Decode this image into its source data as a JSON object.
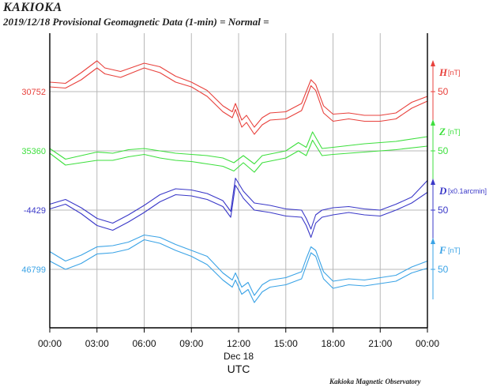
{
  "header": {
    "station": "KAKIOKA",
    "subtitle": "2019/12/18  Provisional Geomagnetic Data (1-min)  = Normal ="
  },
  "footer": {
    "credit": "Kakioka Magnetic Observatory"
  },
  "chart_data": {
    "type": "line",
    "title": "Provisional Geomagnetic Data (1-min)",
    "xlabel": "UTC",
    "date_label": "Dec 18",
    "x_ticks": [
      "00:00",
      "03:00",
      "06:00",
      "09:00",
      "12:00",
      "15:00",
      "18:00",
      "21:00",
      "00:00"
    ],
    "x_hours": [
      0,
      3,
      6,
      9,
      12,
      15,
      18,
      21,
      24
    ],
    "grid": true,
    "series": [
      {
        "name": "H",
        "unit": "[nT]",
        "scale_label": "50",
        "baseline_label": "30752",
        "color": "#e8413c",
        "scale_nt_per_div": 50,
        "upper": [
          [
            0,
            30760
          ],
          [
            1,
            30759
          ],
          [
            2,
            30768
          ],
          [
            3,
            30778
          ],
          [
            3.5,
            30772
          ],
          [
            4.5,
            30769
          ],
          [
            6,
            30776
          ],
          [
            7,
            30773
          ],
          [
            8,
            30765
          ],
          [
            9,
            30760
          ],
          [
            10,
            30753
          ],
          [
            11,
            30740
          ],
          [
            11.6,
            30735
          ],
          [
            11.8,
            30742
          ],
          [
            12.2,
            30728
          ],
          [
            12.5,
            30732
          ],
          [
            13,
            30722
          ],
          [
            13.5,
            30730
          ],
          [
            14,
            30734
          ],
          [
            15,
            30735
          ],
          [
            16,
            30742
          ],
          [
            16.3,
            30752
          ],
          [
            16.6,
            30762
          ],
          [
            16.9,
            30758
          ],
          [
            17.4,
            30740
          ],
          [
            18,
            30733
          ],
          [
            19,
            30734
          ],
          [
            20,
            30732
          ],
          [
            21,
            30732
          ],
          [
            22,
            30734
          ],
          [
            23,
            30743
          ],
          [
            24,
            30748
          ]
        ],
        "lower": [
          [
            0,
            30756
          ],
          [
            1,
            30755
          ],
          [
            2,
            30762
          ],
          [
            3,
            30772
          ],
          [
            3.5,
            30767
          ],
          [
            4.5,
            30764
          ],
          [
            6,
            30772
          ],
          [
            7,
            30768
          ],
          [
            8,
            30760
          ],
          [
            9,
            30756
          ],
          [
            10,
            30748
          ],
          [
            11,
            30735
          ],
          [
            11.6,
            30730
          ],
          [
            11.8,
            30737
          ],
          [
            12.2,
            30722
          ],
          [
            12.5,
            30726
          ],
          [
            13,
            30716
          ],
          [
            13.5,
            30724
          ],
          [
            14,
            30728
          ],
          [
            15,
            30729
          ],
          [
            16,
            30736
          ],
          [
            16.3,
            30746
          ],
          [
            16.6,
            30757
          ],
          [
            16.9,
            30753
          ],
          [
            17.4,
            30734
          ],
          [
            18,
            30727
          ],
          [
            19,
            30729
          ],
          [
            20,
            30727
          ],
          [
            21,
            30727
          ],
          [
            22,
            30729
          ],
          [
            23,
            30738
          ],
          [
            24,
            30744
          ]
        ]
      },
      {
        "name": "Z",
        "unit": "[nT]",
        "scale_label": "50",
        "baseline_label": "35360",
        "color": "#3ddf3d",
        "scale_nt_per_div": 50,
        "upper": [
          [
            0,
            35362
          ],
          [
            1,
            35353
          ],
          [
            2,
            35356
          ],
          [
            3,
            35359
          ],
          [
            4,
            35358
          ],
          [
            5,
            35361
          ],
          [
            6,
            35362
          ],
          [
            7,
            35360
          ],
          [
            8,
            35358
          ],
          [
            9,
            35357
          ],
          [
            10,
            35356
          ],
          [
            11,
            35354
          ],
          [
            11.7,
            35350
          ],
          [
            12.3,
            35356
          ],
          [
            13,
            35349
          ],
          [
            13.5,
            35356
          ],
          [
            15,
            35360
          ],
          [
            15.8,
            35367
          ],
          [
            16.3,
            35363
          ],
          [
            16.7,
            35376
          ],
          [
            17.3,
            35362
          ],
          [
            18,
            35363
          ],
          [
            20,
            35366
          ],
          [
            22,
            35368
          ],
          [
            24,
            35372
          ]
        ],
        "lower": [
          [
            0,
            35358
          ],
          [
            1,
            35348
          ],
          [
            2,
            35350
          ],
          [
            3,
            35352
          ],
          [
            4,
            35352
          ],
          [
            5,
            35355
          ],
          [
            6,
            35357
          ],
          [
            7,
            35354
          ],
          [
            8,
            35352
          ],
          [
            9,
            35351
          ],
          [
            10,
            35349
          ],
          [
            11,
            35347
          ],
          [
            11.7,
            35343
          ],
          [
            12.3,
            35350
          ],
          [
            13,
            35342
          ],
          [
            13.5,
            35350
          ],
          [
            15,
            35354
          ],
          [
            15.8,
            35360
          ],
          [
            16.3,
            35356
          ],
          [
            16.7,
            35369
          ],
          [
            17.3,
            35356
          ],
          [
            18,
            35357
          ],
          [
            20,
            35359
          ],
          [
            22,
            35361
          ],
          [
            24,
            35364
          ]
        ]
      },
      {
        "name": "D",
        "unit": "[x0.1arcmin]",
        "scale_label": "50",
        "baseline_label": "-4429",
        "color": "#3a38c8",
        "scale_nt_per_div": 50,
        "upper": [
          [
            0,
            -4424
          ],
          [
            1,
            -4420
          ],
          [
            2,
            -4427
          ],
          [
            3,
            -4436
          ],
          [
            4,
            -4440
          ],
          [
            5,
            -4433
          ],
          [
            6,
            -4425
          ],
          [
            7,
            -4416
          ],
          [
            8,
            -4411
          ],
          [
            9,
            -4412
          ],
          [
            10,
            -4415
          ],
          [
            11,
            -4421
          ],
          [
            11.5,
            -4430
          ],
          [
            11.8,
            -4402
          ],
          [
            12.3,
            -4413
          ],
          [
            13,
            -4423
          ],
          [
            14,
            -4425
          ],
          [
            15,
            -4428
          ],
          [
            16,
            -4429
          ],
          [
            16.3,
            -4436
          ],
          [
            16.6,
            -4445
          ],
          [
            16.9,
            -4433
          ],
          [
            17.3,
            -4429
          ],
          [
            18,
            -4427
          ],
          [
            19,
            -4426
          ],
          [
            20,
            -4428
          ],
          [
            21,
            -4429
          ],
          [
            22,
            -4424
          ],
          [
            23,
            -4418
          ],
          [
            24,
            -4404
          ]
        ],
        "lower": [
          [
            0,
            -4428
          ],
          [
            1,
            -4424
          ],
          [
            2,
            -4432
          ],
          [
            3,
            -4442
          ],
          [
            4,
            -4446
          ],
          [
            5,
            -4439
          ],
          [
            6,
            -4431
          ],
          [
            7,
            -4422
          ],
          [
            8,
            -4416
          ],
          [
            9,
            -4417
          ],
          [
            10,
            -4420
          ],
          [
            11,
            -4426
          ],
          [
            11.5,
            -4435
          ],
          [
            11.8,
            -4408
          ],
          [
            12.3,
            -4419
          ],
          [
            13,
            -4429
          ],
          [
            14,
            -4431
          ],
          [
            15,
            -4434
          ],
          [
            16,
            -4435
          ],
          [
            16.3,
            -4442
          ],
          [
            16.6,
            -4452
          ],
          [
            16.9,
            -4440
          ],
          [
            17.3,
            -4435
          ],
          [
            18,
            -4433
          ],
          [
            19,
            -4431
          ],
          [
            20,
            -4433
          ],
          [
            21,
            -4434
          ],
          [
            22,
            -4429
          ],
          [
            23,
            -4423
          ],
          [
            24,
            -4414
          ]
        ]
      },
      {
        "name": "F",
        "unit": "[nT]",
        "scale_label": "50",
        "baseline_label": "46799",
        "color": "#3aa3e6",
        "scale_nt_per_div": 50,
        "upper": [
          [
            0,
            46814
          ],
          [
            1,
            46806
          ],
          [
            2,
            46811
          ],
          [
            3,
            46818
          ],
          [
            4,
            46819
          ],
          [
            5,
            46822
          ],
          [
            6,
            46828
          ],
          [
            7,
            46826
          ],
          [
            8,
            46820
          ],
          [
            9,
            46815
          ],
          [
            10,
            46810
          ],
          [
            11,
            46796
          ],
          [
            11.6,
            46790
          ],
          [
            11.8,
            46796
          ],
          [
            12.2,
            46784
          ],
          [
            12.6,
            46788
          ],
          [
            13,
            46777
          ],
          [
            13.5,
            46786
          ],
          [
            14,
            46790
          ],
          [
            15,
            46792
          ],
          [
            16,
            46797
          ],
          [
            16.3,
            46808
          ],
          [
            16.6,
            46818
          ],
          [
            16.9,
            46815
          ],
          [
            17.4,
            46797
          ],
          [
            18,
            46789
          ],
          [
            19,
            46791
          ],
          [
            20,
            46790
          ],
          [
            21,
            46792
          ],
          [
            22,
            46794
          ],
          [
            23,
            46801
          ],
          [
            24,
            46806
          ]
        ],
        "lower": [
          [
            0,
            46806
          ],
          [
            1,
            46799
          ],
          [
            2,
            46804
          ],
          [
            3,
            46812
          ],
          [
            4,
            46813
          ],
          [
            5,
            46816
          ],
          [
            6,
            46824
          ],
          [
            7,
            46821
          ],
          [
            8,
            46815
          ],
          [
            9,
            46810
          ],
          [
            10,
            46803
          ],
          [
            11,
            46790
          ],
          [
            11.6,
            46784
          ],
          [
            11.8,
            46790
          ],
          [
            12.2,
            46778
          ],
          [
            12.6,
            46782
          ],
          [
            13,
            46771
          ],
          [
            13.5,
            46780
          ],
          [
            14,
            46784
          ],
          [
            15,
            46786
          ],
          [
            16,
            46791
          ],
          [
            16.3,
            46802
          ],
          [
            16.6,
            46813
          ],
          [
            16.9,
            46810
          ],
          [
            17.4,
            46791
          ],
          [
            18,
            46783
          ],
          [
            19,
            46786
          ],
          [
            20,
            46785
          ],
          [
            21,
            46787
          ],
          [
            22,
            46789
          ],
          [
            23,
            46796
          ],
          [
            24,
            46800
          ]
        ]
      }
    ]
  }
}
